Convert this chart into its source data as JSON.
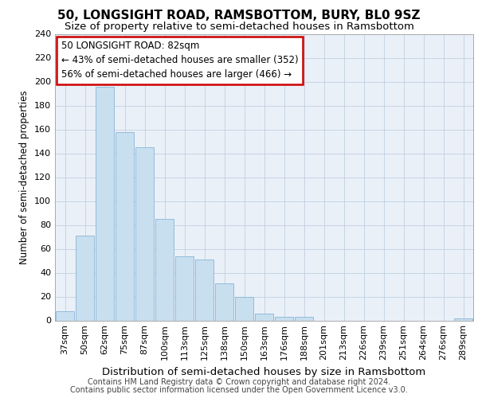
{
  "title": "50, LONGSIGHT ROAD, RAMSBOTTOM, BURY, BL0 9SZ",
  "subtitle": "Size of property relative to semi-detached houses in Ramsbottom",
  "xlabel": "Distribution of semi-detached houses by size in Ramsbottom",
  "ylabel": "Number of semi-detached properties",
  "categories": [
    "37sqm",
    "50sqm",
    "62sqm",
    "75sqm",
    "87sqm",
    "100sqm",
    "113sqm",
    "125sqm",
    "138sqm",
    "150sqm",
    "163sqm",
    "176sqm",
    "188sqm",
    "201sqm",
    "213sqm",
    "226sqm",
    "239sqm",
    "251sqm",
    "264sqm",
    "276sqm",
    "289sqm"
  ],
  "values": [
    8,
    71,
    196,
    158,
    145,
    85,
    54,
    51,
    31,
    20,
    6,
    3,
    3,
    0,
    0,
    0,
    0,
    0,
    0,
    0,
    2
  ],
  "bar_color": "#c8dff0",
  "bar_edge_color": "#8ab4d4",
  "annotation_text": "50 LONGSIGHT ROAD: 82sqm\n← 43% of semi-detached houses are smaller (352)\n56% of semi-detached houses are larger (466) →",
  "annotation_box_color": "#ffffff",
  "annotation_box_edge_color": "#cc0000",
  "ylim": [
    0,
    240
  ],
  "yticks": [
    0,
    20,
    40,
    60,
    80,
    100,
    120,
    140,
    160,
    180,
    200,
    220,
    240
  ],
  "footer1": "Contains HM Land Registry data © Crown copyright and database right 2024.",
  "footer2": "Contains public sector information licensed under the Open Government Licence v3.0.",
  "bg_color": "#ffffff",
  "plot_bg_color": "#eaf0f8",
  "grid_color": "#c0d0e0",
  "title_fontsize": 11,
  "subtitle_fontsize": 9.5,
  "xlabel_fontsize": 9.5,
  "ylabel_fontsize": 8.5,
  "tick_fontsize": 8,
  "footer_fontsize": 7,
  "annotation_fontsize": 8.5
}
